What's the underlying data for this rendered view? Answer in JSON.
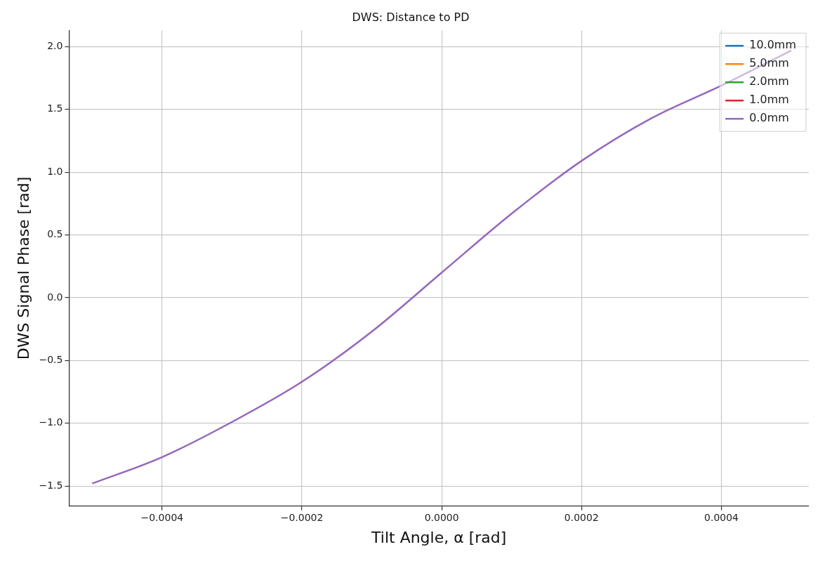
{
  "chart_data": {
    "type": "line",
    "title": "DWS: Distance to PD",
    "xlabel": "Tilt Angle, α [rad]",
    "ylabel": "DWS Signal Phase [rad]",
    "x": [
      -0.0005,
      -0.0004,
      -0.0003,
      -0.0002,
      -0.0001,
      0,
      0.0001,
      0.0002,
      0.0003,
      0.0004,
      0.0005
    ],
    "series": [
      {
        "name": "10.0mm",
        "color": "#1f77b4",
        "values": [
          null,
          null,
          null,
          null,
          null,
          null,
          null,
          null,
          null,
          null,
          null
        ]
      },
      {
        "name": "5.0mm",
        "color": "#ff7f0e",
        "values": [
          null,
          null,
          null,
          null,
          null,
          null,
          null,
          null,
          null,
          null,
          null
        ]
      },
      {
        "name": "2.0mm",
        "color": "#2ca02c",
        "values": [
          null,
          null,
          null,
          null,
          null,
          null,
          null,
          null,
          null,
          null,
          null
        ]
      },
      {
        "name": "1.0mm",
        "color": "#d62728",
        "values": [
          null,
          null,
          null,
          null,
          null,
          null,
          null,
          null,
          null,
          null,
          null
        ]
      },
      {
        "name": "0.0mm",
        "color": "#9467bd",
        "values": [
          -1.48,
          -1.27,
          -0.99,
          -0.67,
          -0.27,
          0.2,
          0.67,
          1.09,
          1.43,
          1.69,
          1.97
        ]
      }
    ],
    "xlim": [
      -0.000533,
      0.000525
    ],
    "xticks": [
      {
        "value": -0.0004,
        "label": "−0.0004"
      },
      {
        "value": -0.0002,
        "label": "−0.0002"
      },
      {
        "value": 0,
        "label": "0.0000"
      },
      {
        "value": 0.0002,
        "label": "0.0002"
      },
      {
        "value": 0.0004,
        "label": "0.0004"
      }
    ],
    "ylim": [
      -1.66,
      2.13
    ],
    "yticks": [
      {
        "value": -1.5,
        "label": "−1.5"
      },
      {
        "value": -1,
        "label": "−1.0"
      },
      {
        "value": -0.5,
        "label": "−0.5"
      },
      {
        "value": 0,
        "label": "0.0"
      },
      {
        "value": 0.5,
        "label": "0.5"
      },
      {
        "value": 1,
        "label": "1.0"
      },
      {
        "value": 1.5,
        "label": "1.5"
      },
      {
        "value": 2,
        "label": "2.0"
      }
    ],
    "grid": true,
    "legend": "top right",
    "marker": "none",
    "line_style": "solid"
  }
}
